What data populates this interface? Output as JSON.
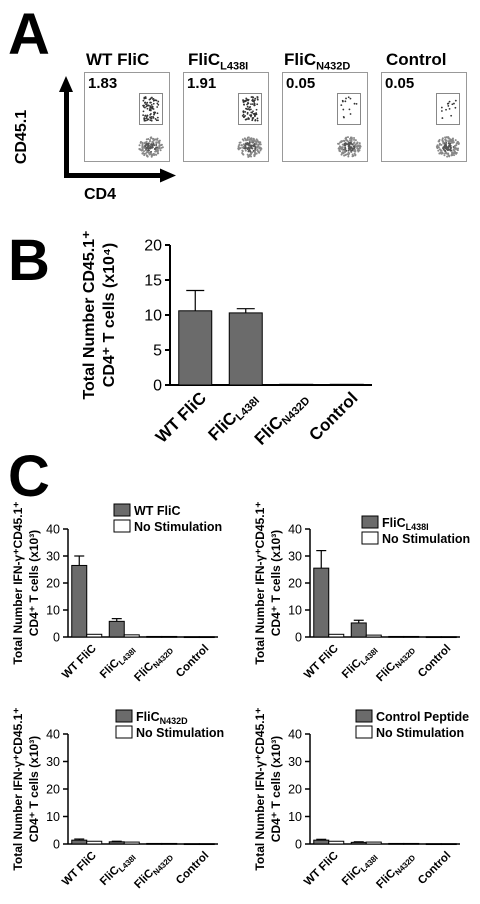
{
  "panels": {
    "a": "A",
    "b": "B",
    "c": "C"
  },
  "flow": {
    "y_axis": "CD45.1",
    "x_axis": "CD4",
    "samples": [
      {
        "title": "WT FliC",
        "sub": "",
        "value": "1.83"
      },
      {
        "title": "FliC",
        "sub": "L438I",
        "value": "1.91"
      },
      {
        "title": "FliC",
        "sub": "N432D",
        "value": "0.05"
      },
      {
        "title": "Control",
        "sub": "",
        "value": "0.05"
      }
    ]
  },
  "colors": {
    "bar": "#6b6b6b",
    "no_stim": "#ffffff",
    "axis": "#000000"
  },
  "chart_data": [
    {
      "type": "bar",
      "panel": "B",
      "categories": [
        "WT FliC",
        "FliC L438I",
        "FliC N432D",
        "Control"
      ],
      "category_labels": [
        {
          "main": "WT FliC",
          "sub": ""
        },
        {
          "main": "FliC",
          "sub": "L438I"
        },
        {
          "main": "FliC",
          "sub": "N432D"
        },
        {
          "main": "Control",
          "sub": ""
        }
      ],
      "values": [
        10.6,
        10.3,
        0.1,
        0.1
      ],
      "errors": [
        2.9,
        0.6,
        0,
        0
      ],
      "ylabel_line1": "Total Number CD45.1⁺",
      "ylabel_line2": "CD4⁺ T cells (x10⁴)",
      "ylim": [
        0,
        20
      ],
      "yticks": [
        0,
        5,
        10,
        15,
        20
      ]
    },
    {
      "type": "bar",
      "panel": "C1",
      "categories": [
        "WT FliC",
        "FliC L438I",
        "FliC N432D",
        "Control"
      ],
      "category_labels": [
        {
          "main": "WT FliC",
          "sub": ""
        },
        {
          "main": "FliC",
          "sub": "L438I"
        },
        {
          "main": "FliC",
          "sub": "N432D"
        },
        {
          "main": "Control",
          "sub": ""
        }
      ],
      "series": [
        {
          "name": "WT FliC",
          "name_sub": "",
          "values": [
            26.5,
            5.8,
            0.2,
            0.1
          ],
          "errors": [
            3.5,
            1.0,
            0,
            0
          ]
        },
        {
          "name": "No Stimulation",
          "name_sub": "",
          "values": [
            1.0,
            0.8,
            0.2,
            0.1
          ],
          "errors": [
            0,
            0,
            0,
            0
          ]
        }
      ],
      "ylabel_line1": "Total Number IFN-γ⁺CD45.1⁺",
      "ylabel_line2": "CD4⁺ T cells (x10³)",
      "ylim": [
        0,
        40
      ],
      "yticks": [
        0,
        10,
        20,
        30,
        40
      ]
    },
    {
      "type": "bar",
      "panel": "C2",
      "categories": [
        "WT FliC",
        "FliC L438I",
        "FliC N432D",
        "Control"
      ],
      "category_labels": [
        {
          "main": "WT FliC",
          "sub": ""
        },
        {
          "main": "FliC",
          "sub": "L438I"
        },
        {
          "main": "FliC",
          "sub": "N432D"
        },
        {
          "main": "Control",
          "sub": ""
        }
      ],
      "series": [
        {
          "name": "FliC",
          "name_sub": "L438I",
          "values": [
            25.5,
            5.2,
            0.2,
            0.1
          ],
          "errors": [
            6.5,
            1.0,
            0,
            0
          ]
        },
        {
          "name": "No Stimulation",
          "name_sub": "",
          "values": [
            1.0,
            0.7,
            0.2,
            0.1
          ],
          "errors": [
            0,
            0,
            0,
            0
          ]
        }
      ],
      "ylabel_line1": "Total Number IFN-γ⁺CD45.1⁺",
      "ylabel_line2": "CD4⁺ T cells (x10³)",
      "ylim": [
        0,
        40
      ],
      "yticks": [
        0,
        10,
        20,
        30,
        40
      ]
    },
    {
      "type": "bar",
      "panel": "C3",
      "categories": [
        "WT FliC",
        "FliC L438I",
        "FliC N432D",
        "Control"
      ],
      "category_labels": [
        {
          "main": "WT FliC",
          "sub": ""
        },
        {
          "main": "FliC",
          "sub": "L438I"
        },
        {
          "main": "FliC",
          "sub": "N432D"
        },
        {
          "main": "Control",
          "sub": ""
        }
      ],
      "series": [
        {
          "name": "FliC",
          "name_sub": "N432D",
          "values": [
            1.4,
            0.8,
            0.2,
            0.1
          ],
          "errors": [
            0.4,
            0.2,
            0,
            0
          ]
        },
        {
          "name": "No Stimulation",
          "name_sub": "",
          "values": [
            1.0,
            0.7,
            0.2,
            0.1
          ],
          "errors": [
            0,
            0,
            0,
            0
          ]
        }
      ],
      "ylabel_line1": "Total Number IFN-γ⁺CD45.1⁺",
      "ylabel_line2": "CD4⁺ T cells (x10³)",
      "ylim": [
        0,
        40
      ],
      "yticks": [
        0,
        10,
        20,
        30,
        40
      ]
    },
    {
      "type": "bar",
      "panel": "C4",
      "categories": [
        "WT FliC",
        "FliC L438I",
        "FliC N432D",
        "Control"
      ],
      "category_labels": [
        {
          "main": "WT FliC",
          "sub": ""
        },
        {
          "main": "FliC",
          "sub": "L438I"
        },
        {
          "main": "FliC",
          "sub": "N432D"
        },
        {
          "main": "Control",
          "sub": ""
        }
      ],
      "series": [
        {
          "name": "Control Peptide",
          "name_sub": "",
          "values": [
            1.4,
            0.6,
            0.2,
            0.1
          ],
          "errors": [
            0.3,
            0.2,
            0,
            0
          ]
        },
        {
          "name": "No Stimulation",
          "name_sub": "",
          "values": [
            1.0,
            0.7,
            0.2,
            0.1
          ],
          "errors": [
            0,
            0,
            0,
            0
          ]
        }
      ],
      "ylabel_line1": "Total Number IFN-γ⁺CD45.1⁺",
      "ylabel_line2": "CD4⁺ T cells (x10³)",
      "ylim": [
        0,
        40
      ],
      "yticks": [
        0,
        10,
        20,
        30,
        40
      ]
    }
  ]
}
